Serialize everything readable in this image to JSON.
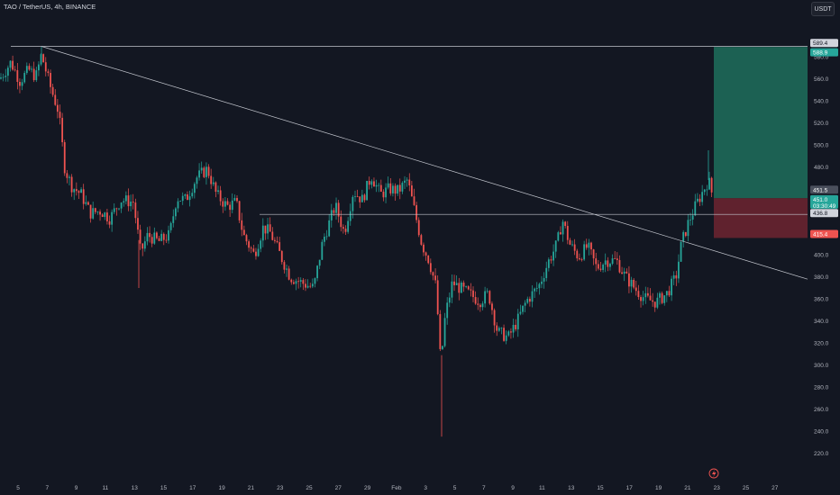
{
  "header": {
    "symbol_line": "TAO / TetherUS, 4h, BINANCE",
    "currency": "USDT"
  },
  "colors": {
    "background": "#131722",
    "up": "#26a69a",
    "down": "#ef5350",
    "profit_zone": "#1f6f5c",
    "loss_zone": "#6e2530",
    "line": "#c3c6ce"
  },
  "chart_data": {
    "type": "candlestick",
    "symbol": "TAO / TetherUS",
    "timeframe": "4h",
    "exchange": "BINANCE",
    "ylim": [
      210,
      595
    ],
    "y_ticks": [
      220,
      240,
      260,
      280,
      300,
      320,
      340,
      360,
      380,
      400,
      420,
      440,
      460,
      480,
      500,
      520,
      540,
      560,
      580
    ],
    "y_tick_labels": [
      "220.0",
      "240.0",
      "260.0",
      "280.0",
      "300.0",
      "320.0",
      "340.0",
      "360.0",
      "380.0",
      "400.0",
      "420.0",
      "440.0",
      "460.0",
      "480.0",
      "500.0",
      "520.0",
      "540.0",
      "560.0",
      "580.0"
    ],
    "x_tick_labels": [
      "5",
      "7",
      "9",
      "11",
      "13",
      "15",
      "17",
      "19",
      "21",
      "23",
      "25",
      "27",
      "29",
      "Feb",
      "3",
      "5",
      "7",
      "9",
      "11",
      "13",
      "15",
      "17",
      "19",
      "21",
      "23",
      "25",
      "27"
    ],
    "price_anchors": [
      {
        "x": 0,
        "p": 560
      },
      {
        "x": 12,
        "p": 575
      },
      {
        "x": 22,
        "p": 558
      },
      {
        "x": 32,
        "p": 568
      },
      {
        "x": 40,
        "p": 562
      },
      {
        "x": 46,
        "p": 582
      },
      {
        "x": 55,
        "p": 555
      },
      {
        "x": 65,
        "p": 530
      },
      {
        "x": 72,
        "p": 478
      },
      {
        "x": 80,
        "p": 462
      },
      {
        "x": 90,
        "p": 455
      },
      {
        "x": 100,
        "p": 438
      },
      {
        "x": 112,
        "p": 440
      },
      {
        "x": 122,
        "p": 433
      },
      {
        "x": 134,
        "p": 450
      },
      {
        "x": 148,
        "p": 448
      },
      {
        "x": 156,
        "p": 402
      },
      {
        "x": 164,
        "p": 418
      },
      {
        "x": 176,
        "p": 412
      },
      {
        "x": 188,
        "p": 418
      },
      {
        "x": 196,
        "p": 452
      },
      {
        "x": 206,
        "p": 450
      },
      {
        "x": 218,
        "p": 470
      },
      {
        "x": 230,
        "p": 478
      },
      {
        "x": 240,
        "p": 455
      },
      {
        "x": 252,
        "p": 444
      },
      {
        "x": 262,
        "p": 448
      },
      {
        "x": 270,
        "p": 418
      },
      {
        "x": 282,
        "p": 400
      },
      {
        "x": 292,
        "p": 425
      },
      {
        "x": 300,
        "p": 420
      },
      {
        "x": 312,
        "p": 398
      },
      {
        "x": 322,
        "p": 380
      },
      {
        "x": 334,
        "p": 375
      },
      {
        "x": 348,
        "p": 370
      },
      {
        "x": 358,
        "p": 412
      },
      {
        "x": 372,
        "p": 445
      },
      {
        "x": 382,
        "p": 420
      },
      {
        "x": 392,
        "p": 458
      },
      {
        "x": 402,
        "p": 450
      },
      {
        "x": 412,
        "p": 472
      },
      {
        "x": 422,
        "p": 455
      },
      {
        "x": 432,
        "p": 460
      },
      {
        "x": 442,
        "p": 458
      },
      {
        "x": 452,
        "p": 468
      },
      {
        "x": 460,
        "p": 440
      },
      {
        "x": 468,
        "p": 410
      },
      {
        "x": 476,
        "p": 395
      },
      {
        "x": 484,
        "p": 370
      },
      {
        "x": 489,
        "p": 300
      },
      {
        "x": 494,
        "p": 345
      },
      {
        "x": 502,
        "p": 375
      },
      {
        "x": 510,
        "p": 370
      },
      {
        "x": 520,
        "p": 365
      },
      {
        "x": 532,
        "p": 358
      },
      {
        "x": 542,
        "p": 365
      },
      {
        "x": 552,
        "p": 330
      },
      {
        "x": 564,
        "p": 325
      },
      {
        "x": 574,
        "p": 340
      },
      {
        "x": 584,
        "p": 358
      },
      {
        "x": 598,
        "p": 372
      },
      {
        "x": 608,
        "p": 393
      },
      {
        "x": 618,
        "p": 410
      },
      {
        "x": 624,
        "p": 432
      },
      {
        "x": 632,
        "p": 410
      },
      {
        "x": 642,
        "p": 398
      },
      {
        "x": 652,
        "p": 408
      },
      {
        "x": 662,
        "p": 388
      },
      {
        "x": 672,
        "p": 395
      },
      {
        "x": 684,
        "p": 395
      },
      {
        "x": 694,
        "p": 380
      },
      {
        "x": 706,
        "p": 368
      },
      {
        "x": 716,
        "p": 360
      },
      {
        "x": 728,
        "p": 357
      },
      {
        "x": 740,
        "p": 365
      },
      {
        "x": 750,
        "p": 380
      },
      {
        "x": 756,
        "p": 410
      },
      {
        "x": 764,
        "p": 430
      },
      {
        "x": 772,
        "p": 445
      },
      {
        "x": 780,
        "p": 458
      },
      {
        "x": 786,
        "p": 468
      },
      {
        "x": 791,
        "p": 453
      }
    ],
    "wick_extremes": [
      {
        "x": 46,
        "high": 589.4
      },
      {
        "x": 490,
        "low": 235
      },
      {
        "x": 154,
        "low": 370
      },
      {
        "x": 786,
        "high": 495
      }
    ],
    "annotations": {
      "resistance_level": 589.4,
      "support_level": 436.8,
      "trendline": {
        "from_price": 589.4,
        "to_price": 378
      },
      "long_position": {
        "target": 588.9,
        "entry": 451.5,
        "stop": 415.4
      }
    },
    "price_labels": {
      "level_top": "589.4",
      "target": "588.9",
      "entry": "451.5",
      "current": "451.0",
      "countdown": "03:30:49",
      "support": "436.8",
      "stop": "415.4"
    }
  },
  "bottom_icon": "lightning-icon"
}
